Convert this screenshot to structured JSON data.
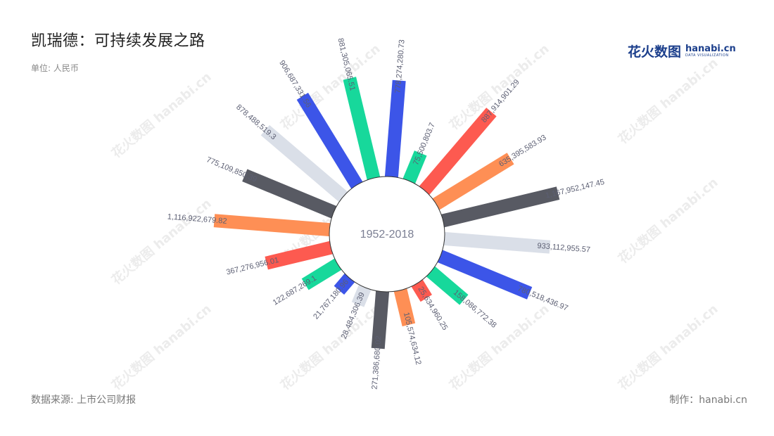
{
  "title": "凯瑞德：可持续发展之路",
  "unit": "单位: 人民币",
  "source": "数据来源: 上市公司财报",
  "credit": "制作：hanabi.cn",
  "logo": {
    "cn": "花火数图",
    "en": "hanabi.cn",
    "sub": "DATA VISUALIZATION"
  },
  "watermark": "花火数图 hanabi.cn",
  "colors": [
    "#3c55e8",
    "#17d89b",
    "#fd5a50",
    "#fe8f55",
    "#585a63",
    "#dadfe8"
  ],
  "chart_data": {
    "type": "bar",
    "layout": "radial",
    "center_label": "1952-2018",
    "value_labels": [
      "778,274,280.73",
      "75,500,803.7",
      "887,914,901.29",
      "635,395,583.93",
      "1,167,952,147.45",
      "933,112,955.57",
      "780,518,436.97",
      "158,086,772.38",
      "25,634,960.25",
      "105,574,634.12",
      "271,386,680.02",
      "28,484,306.39",
      "21,767,180.96",
      "122,687,269.1",
      "367,276,956.01",
      "1,116,922,679.82",
      "775,109,850.39",
      "878,488,519.3",
      "906,687,331.56",
      "881,305,065.51"
    ],
    "values": [
      778274280.73,
      75500803.7,
      887914901.29,
      635395583.93,
      1167952147.45,
      933112955.57,
      780518436.97,
      158086772.38,
      25634960.25,
      105574634.12,
      271386680.02,
      28484306.39,
      21767180.96,
      122687269.1,
      367276956.01,
      1116922679.82,
      775109850.39,
      878488519.3,
      906687331.56,
      881305065.51
    ]
  }
}
